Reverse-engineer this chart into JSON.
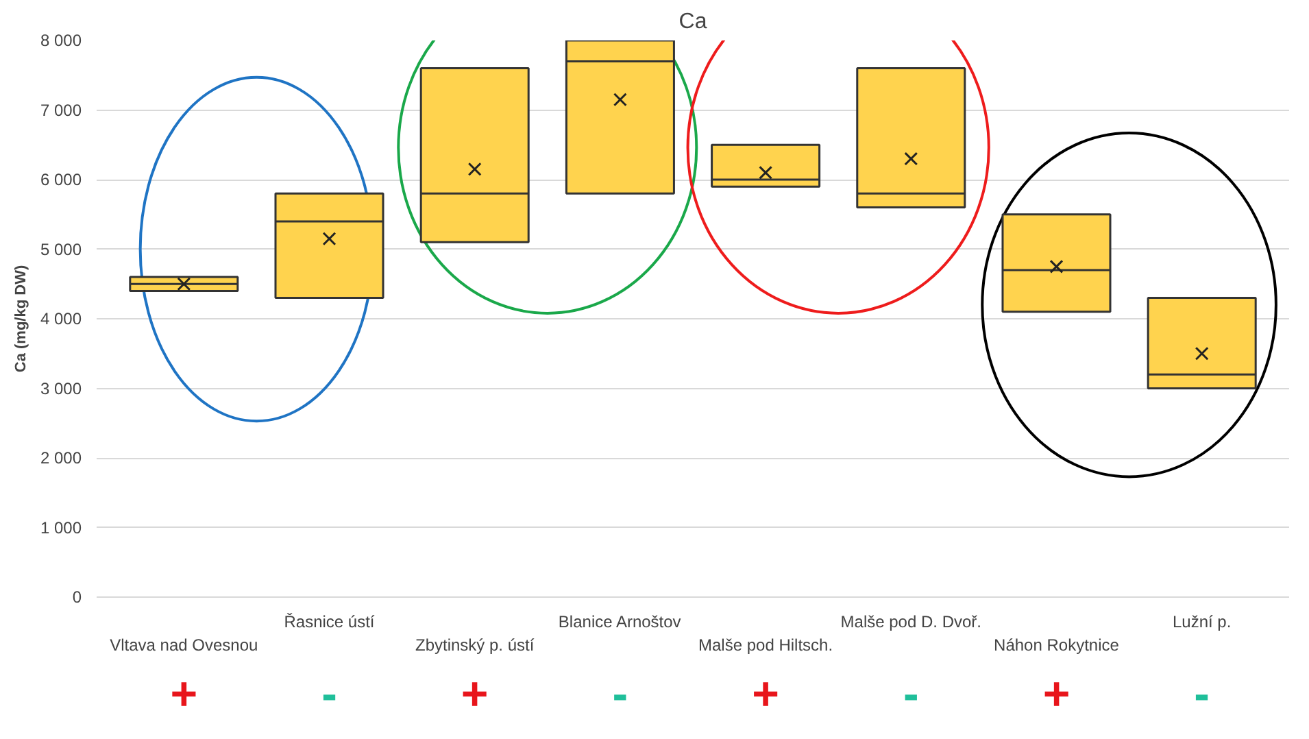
{
  "chart_data": {
    "type": "box",
    "title": "Ca",
    "ylabel": "Ca (mg/kg DW)",
    "categories": [
      "Vltava nad Ovesnou",
      "Řasnice ústí",
      "Zbytinský p. ústí",
      "Blanice Arnoštov",
      "Malše pod Hiltsch.",
      "Malše pod D. Dvoř.",
      "Náhon Rokytnice",
      "Lužní p."
    ],
    "series": [
      {
        "color": "#ffd34e",
        "boxes": [
          {
            "low": 4400,
            "q1": 4400,
            "median": 4500,
            "q3": 4600,
            "high": 4600,
            "mean": 4500
          },
          {
            "low": 4300,
            "q1": 4300,
            "median": 5400,
            "q3": 5800,
            "high": 5800,
            "mean": 5150
          },
          {
            "low": 5100,
            "q1": 5100,
            "median": 5800,
            "q3": 7600,
            "high": 7600,
            "mean": 6150
          },
          {
            "low": 5800,
            "q1": 5800,
            "median": 7700,
            "q3": 8000,
            "high": 8000,
            "mean": 7150
          },
          {
            "low": 5900,
            "q1": 5900,
            "median": 6000,
            "q3": 6500,
            "high": 6500,
            "mean": 6100
          },
          {
            "low": 5600,
            "q1": 5600,
            "median": 5800,
            "q3": 7600,
            "high": 7600,
            "mean": 6300
          },
          {
            "low": 4100,
            "q1": 4100,
            "median": 4700,
            "q3": 5500,
            "high": 5500,
            "mean": 4750
          },
          {
            "low": 3000,
            "q1": 3000,
            "median": 3200,
            "q3": 4300,
            "high": 4300,
            "mean": 3500
          }
        ]
      }
    ],
    "ylim": [
      0,
      8000
    ],
    "yticks": [
      {
        "value": 0,
        "label": "0"
      },
      {
        "value": 1000,
        "label": "1 000"
      },
      {
        "value": 2000,
        "label": "2 000"
      },
      {
        "value": 3000,
        "label": "3 000"
      },
      {
        "value": 4000,
        "label": "4 000"
      },
      {
        "value": 5000,
        "label": "5 000"
      },
      {
        "value": 6000,
        "label": "6 000"
      },
      {
        "value": 7000,
        "label": "7 000"
      },
      {
        "value": 8000,
        "label": "8 000"
      }
    ],
    "grid": "y",
    "marker": "cross",
    "annotations": [
      "+",
      "-",
      "+",
      "-",
      "+",
      "-",
      "+",
      "-"
    ]
  }
}
